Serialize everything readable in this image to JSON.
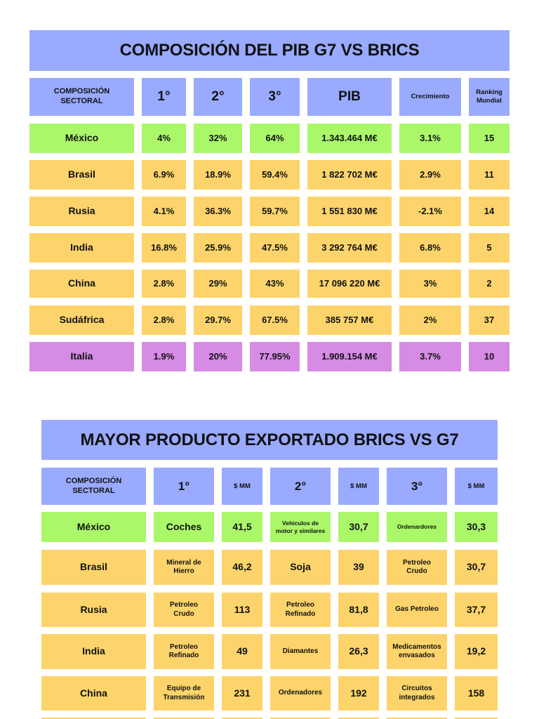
{
  "table1": {
    "title": "COMPOSICIÓN DEL PIB G7 VS BRICS",
    "headers": [
      "COMPOSICIÓN SECTORAL",
      "1°",
      "2°",
      "3°",
      "PIB",
      "Crecimiento",
      "Ranking Mundial"
    ],
    "rows": [
      {
        "pais": "México",
        "c1": "4%",
        "c2": "32%",
        "c3": "64%",
        "pib": "1.343.464 M€",
        "crec": "3.1%",
        "rank": "15"
      },
      {
        "pais": "Brasil",
        "c1": "6.9%",
        "c2": "18.9%",
        "c3": "59.4%",
        "pib": "1 822 702 M€",
        "crec": "2.9%",
        "rank": "11"
      },
      {
        "pais": "Rusia",
        "c1": "4.1%",
        "c2": "36.3%",
        "c3": "59.7%",
        "pib": "1 551 830 M€",
        "crec": "-2.1%",
        "rank": "14"
      },
      {
        "pais": "India",
        "c1": "16.8%",
        "c2": "25.9%",
        "c3": "47.5%",
        "pib": "3 292 764 M€",
        "crec": "6.8%",
        "rank": "5"
      },
      {
        "pais": "China",
        "c1": "2.8%",
        "c2": "29%",
        "c3": "43%",
        "pib": "17 096 220 M€",
        "crec": "3%",
        "rank": "2"
      },
      {
        "pais": "Sudáfrica",
        "c1": "2.8%",
        "c2": "29.7%",
        "c3": "67.5%",
        "pib": "385 757 M€",
        "crec": "2%",
        "rank": "37"
      },
      {
        "pais": "Italia",
        "c1": "1.9%",
        "c2": "20%",
        "c3": "77.95%",
        "pib": "1.909.154 M€",
        "crec": "3.7%",
        "rank": "10"
      }
    ]
  },
  "table2": {
    "title": "MAYOR PRODUCTO EXPORTADO BRICS VS G7",
    "headers": [
      "COMPOSICIÓN SECTORAL",
      "1°",
      "$ MM",
      "2°",
      "$ MM",
      "3°",
      "$ MM"
    ],
    "rows": [
      {
        "pais": "México",
        "p1": "Coches",
        "v1": "41,5",
        "p2": "Vehiculos de motor y similares",
        "v2": "30,7",
        "p3": "Ordenardores",
        "v3": "30,3"
      },
      {
        "pais": "Brasil",
        "p1": "Mineral de Hierro",
        "v1": "46,2",
        "p2": "Soja",
        "v2": "39",
        "p3": "Petroleo Crudo",
        "v3": "30,7"
      },
      {
        "pais": "Rusia",
        "p1": "Petroleo Crudo",
        "v1": "113",
        "p2": "Petroleo Refinado",
        "v2": "81,8",
        "p3": "Gas Petroleo",
        "v3": "37,7"
      },
      {
        "pais": "India",
        "p1": "Petroleo Refinado",
        "v1": "49",
        "p2": "Diamantes",
        "v2": "26,3",
        "p3": "Medicamentos envasados",
        "v3": "19,2"
      },
      {
        "pais": "China",
        "p1": "Equipo de Transmisión",
        "v1": "231",
        "p2": "Ordenadores",
        "v2": "192",
        "p3": "Circuitos integrados",
        "v3": "158"
      }
    ]
  },
  "colors": {
    "header": "#99aaff",
    "mexico": "#aaf76a",
    "brics": "#fcd46b",
    "italia": "#d68be5"
  }
}
